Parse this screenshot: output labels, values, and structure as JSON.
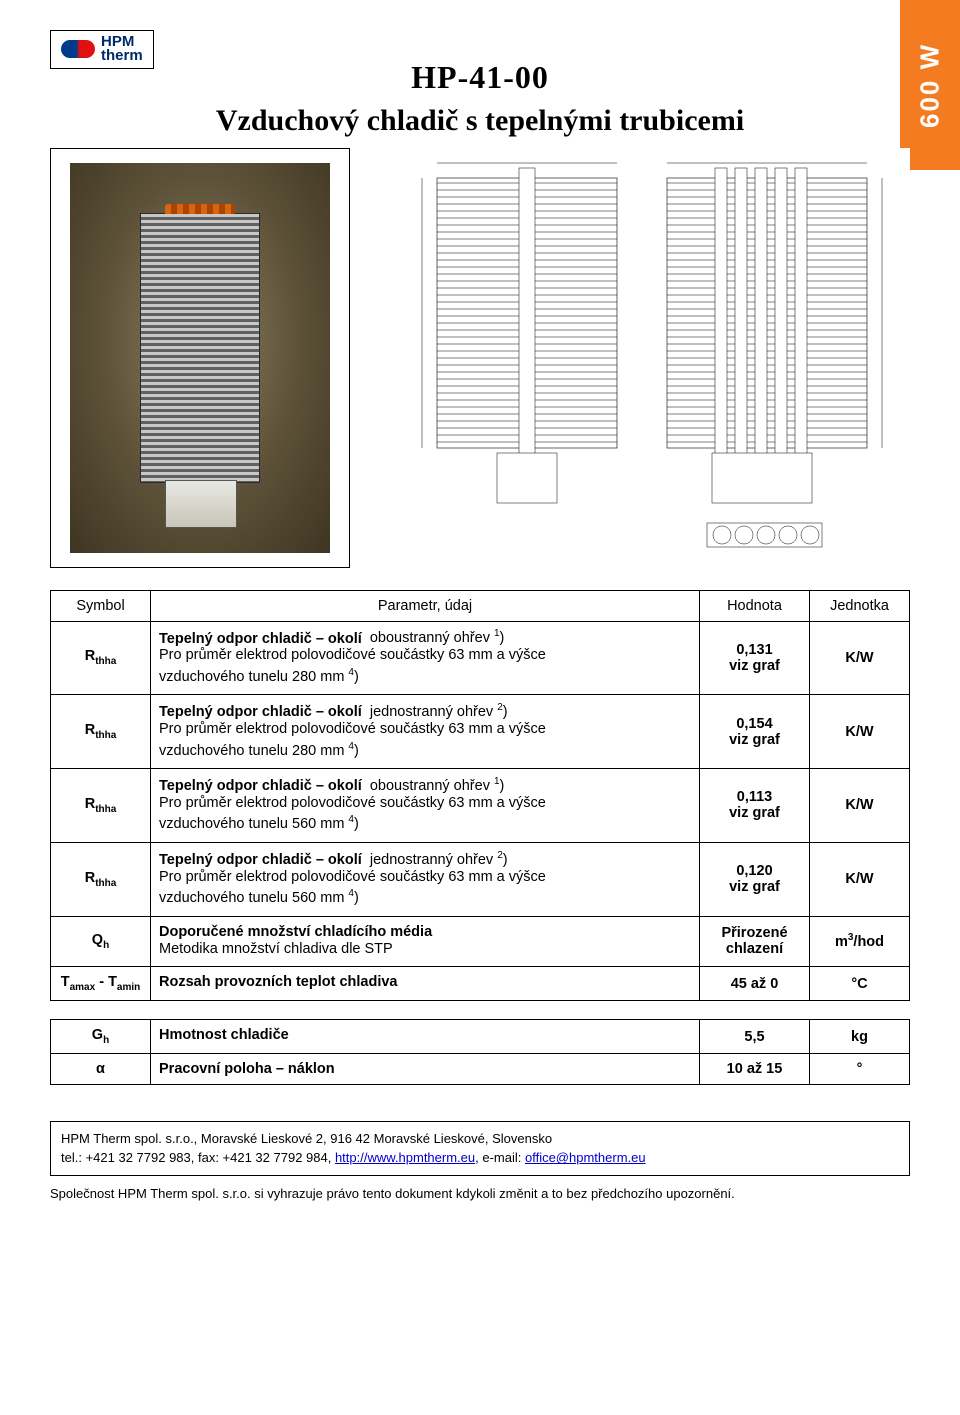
{
  "logo": {
    "line1": "HPM",
    "line2": "therm"
  },
  "header": {
    "model": "HP-41-00",
    "subtitle": "Vzduchový chladič s tepelnými trubicemi",
    "side_tag": "600 W"
  },
  "table": {
    "headers": {
      "symbol": "Symbol",
      "param": "Parametr, údaj",
      "value": "Hodnota",
      "unit": "Jednotka"
    },
    "rows": [
      {
        "symbol_main": "R",
        "symbol_sub": "thha",
        "bold": "Tepelný odpor chladič – okolí",
        "bold_tail": "oboustranný ohřev",
        "bold_sup": "1",
        "bold_close": ")",
        "line2": "Pro průměr elektrod polovodičové součástky 63 mm a výšce",
        "line3": "vzduchového tunelu 280 mm",
        "line3_sup": "4",
        "line3_close": ")",
        "value": "0,131",
        "value2": "viz graf",
        "unit": "K/W"
      },
      {
        "symbol_main": "R",
        "symbol_sub": "thha",
        "bold": "Tepelný odpor chladič – okolí",
        "bold_tail": "jednostranný ohřev",
        "bold_sup": "2",
        "bold_close": ")",
        "line2": "Pro průměr elektrod polovodičové součástky 63 mm a výšce",
        "line3": "vzduchového tunelu 280 mm",
        "line3_sup": "4",
        "line3_close": ")",
        "value": "0,154",
        "value2": "viz graf",
        "unit": "K/W"
      },
      {
        "symbol_main": "R",
        "symbol_sub": "thha",
        "bold": "Tepelný odpor chladič – okolí",
        "bold_tail": "oboustranný ohřev",
        "bold_sup": "1",
        "bold_close": ")",
        "line2": "Pro průměr elektrod polovodičové součástky 63 mm a výšce",
        "line3": "vzduchového tunelu 560 mm",
        "line3_sup": "4",
        "line3_close": ")",
        "value": "0,113",
        "value2": "viz graf",
        "unit": "K/W"
      },
      {
        "symbol_main": "R",
        "symbol_sub": "thha",
        "bold": "Tepelný odpor chladič – okolí",
        "bold_tail": "jednostranný ohřev",
        "bold_sup": "2",
        "bold_close": ")",
        "line2": "Pro průměr elektrod polovodičové součástky 63 mm a výšce",
        "line3": "vzduchového tunelu 560 mm",
        "line3_sup": "4",
        "line3_close": ")",
        "value": "0,120",
        "value2": "viz graf",
        "unit": "K/W"
      },
      {
        "symbol_main": "Q",
        "symbol_sub": "h",
        "bold": "Doporučené množství chladícího média",
        "line2": "Metodika množství chladiva dle STP",
        "value": "Přirozené",
        "value2": "chlazení",
        "unit_html": "m³/hod",
        "unit": "m",
        "unit_sup": "3",
        "unit_tail": "/hod"
      },
      {
        "symbol_html": "T<sub style='font-size:10px;font-weight:bold'>amax</sub> - T<sub style='font-size:10px;font-weight:bold'>amin</sub>",
        "symbol_main": "T",
        "symbol_sub": "amax",
        "symbol_sep": " - ",
        "symbol_main2": "T",
        "symbol_sub2": "amin",
        "bold": "Rozsah provozních teplot chladiva",
        "value": "45 až 0",
        "unit": "°C"
      }
    ],
    "rows2": [
      {
        "symbol_main": "G",
        "symbol_sub": "h",
        "bold": "Hmotnost chladiče",
        "value": "5,5",
        "unit": "kg"
      },
      {
        "symbol_plain": "α",
        "bold": "Pracovní poloha – náklon",
        "value": "10 až 15",
        "unit": "°"
      }
    ]
  },
  "footer": {
    "addr_prefix": "HPM Therm spol. s.r.o., Moravské Lieskové 2, 916 42 Moravské Lieskové, Slovensko",
    "tel_prefix": "tel.: +421 32 7792 983, fax: +421 32 7792 984, ",
    "link1": "http://www.hpmtherm.eu",
    "mid": ", e-mail: ",
    "link2": "office@hpmtherm.eu",
    "disclaimer": "Společnost HPM Therm spol. s.r.o. si vyhrazuje právo tento dokument kdykoli změnit a to bez předchozího upozornění."
  },
  "colors": {
    "side_tag_bg": "#f47b1f",
    "link": "#0000cc"
  }
}
